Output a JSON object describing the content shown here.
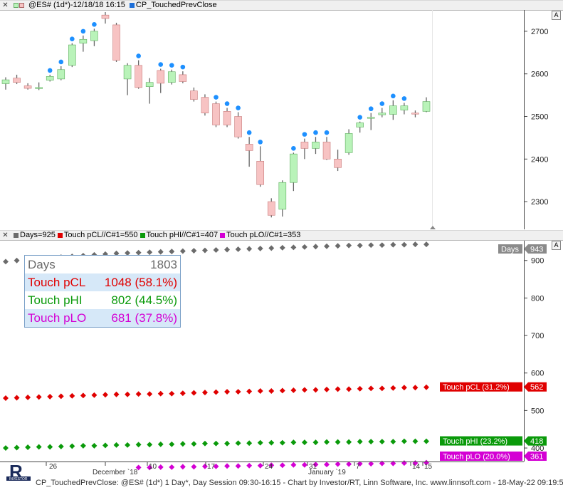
{
  "top_panel": {
    "title": "@ES# (1d*)-12/18/18 16:15",
    "indicator": "CP_TouchedPrevClose",
    "a_button": "A",
    "y_ticks": [
      "2700",
      "2600",
      "2500",
      "2400",
      "2300"
    ]
  },
  "bottom_panel": {
    "legend": [
      "Days=925",
      "Touch pCL//C#1=550",
      "Touch pHI//C#1=407",
      "Touch pLO//C#1=353"
    ],
    "a_button": "A",
    "y_ticks": [
      "900",
      "800",
      "700",
      "600",
      "500",
      "400"
    ],
    "tags": {
      "days": "Days",
      "days_val": "943",
      "pcl_label": "Touch pCL (31.2%)",
      "pcl_val": "562",
      "phi_label": "Touch pHI (23.2%)",
      "phi_val": "418",
      "plo_label": "Touch pLO (20.0%)",
      "plo_val": "361"
    },
    "table": {
      "days_label": "Days",
      "days_val": "1803",
      "pcl_label": "Touch pCL",
      "pcl_val": "1048 (58.1%)",
      "phi_label": "Touch pHI",
      "phi_val": "802 (44.5%)",
      "plo_label": "Touch pLO",
      "plo_val": "681 (37.8%)"
    }
  },
  "x_axis": {
    "labels": [
      "26",
      "December `18",
      "10",
      "17",
      "24",
      "31",
      "January `19",
      "7",
      "14",
      "15"
    ]
  },
  "footer": "CP_TouchedPrevClose: @ES# (1d*) 1 Day*, Day Session 09:30-16:15 - Chart by Investor/RT, Linn Software, Inc. www.linnsoft.com - 18-May-22 09:19:5",
  "colors": {
    "up": "#b9f3b9",
    "down": "#f7c3c3",
    "dot": "#1e90ff",
    "days": "#6b6b6b",
    "pcl": "#e00000",
    "phi": "#0a9a0a",
    "plo": "#d400d4"
  },
  "chart_data": {
    "type": "candlestick",
    "ylim": [
      2235,
      2750
    ],
    "candles": [
      {
        "o": 2577,
        "h": 2592,
        "l": 2563,
        "c": 2586,
        "dot": false
      },
      {
        "o": 2590,
        "h": 2598,
        "l": 2576,
        "c": 2580,
        "dot": false
      },
      {
        "o": 2572,
        "h": 2578,
        "l": 2563,
        "c": 2566,
        "dot": false
      },
      {
        "o": 2566,
        "h": 2580,
        "l": 2562,
        "c": 2568,
        "dot": false
      },
      {
        "o": 2585,
        "h": 2598,
        "l": 2582,
        "c": 2594,
        "dot": true
      },
      {
        "o": 2588,
        "h": 2618,
        "l": 2585,
        "c": 2610,
        "dot": true
      },
      {
        "o": 2620,
        "h": 2672,
        "l": 2616,
        "c": 2668,
        "dot": true
      },
      {
        "o": 2672,
        "h": 2690,
        "l": 2652,
        "c": 2681,
        "dot": true
      },
      {
        "o": 2678,
        "h": 2706,
        "l": 2665,
        "c": 2700,
        "dot": true
      },
      {
        "o": 2738,
        "h": 2745,
        "l": 2718,
        "c": 2730,
        "dot": false
      },
      {
        "o": 2715,
        "h": 2720,
        "l": 2628,
        "c": 2632,
        "dot": false
      },
      {
        "o": 2588,
        "h": 2625,
        "l": 2550,
        "c": 2620,
        "dot": false
      },
      {
        "o": 2620,
        "h": 2632,
        "l": 2565,
        "c": 2568,
        "dot": true
      },
      {
        "o": 2570,
        "h": 2590,
        "l": 2530,
        "c": 2580,
        "dot": false
      },
      {
        "o": 2608,
        "h": 2612,
        "l": 2555,
        "c": 2578,
        "dot": true
      },
      {
        "o": 2580,
        "h": 2610,
        "l": 2575,
        "c": 2605,
        "dot": true
      },
      {
        "o": 2598,
        "h": 2606,
        "l": 2578,
        "c": 2582,
        "dot": true
      },
      {
        "o": 2560,
        "h": 2568,
        "l": 2535,
        "c": 2540,
        "dot": false
      },
      {
        "o": 2545,
        "h": 2552,
        "l": 2502,
        "c": 2508,
        "dot": false
      },
      {
        "o": 2530,
        "h": 2535,
        "l": 2475,
        "c": 2480,
        "dot": true
      },
      {
        "o": 2512,
        "h": 2520,
        "l": 2475,
        "c": 2480,
        "dot": true
      },
      {
        "o": 2500,
        "h": 2510,
        "l": 2448,
        "c": 2452,
        "dot": true
      },
      {
        "o": 2435,
        "h": 2452,
        "l": 2382,
        "c": 2420,
        "dot": true
      },
      {
        "o": 2395,
        "h": 2430,
        "l": 2335,
        "c": 2340,
        "dot": true
      },
      {
        "o": 2300,
        "h": 2308,
        "l": 2263,
        "c": 2268,
        "dot": false
      },
      {
        "o": 2282,
        "h": 2350,
        "l": 2265,
        "c": 2345,
        "dot": false
      },
      {
        "o": 2345,
        "h": 2415,
        "l": 2325,
        "c": 2412,
        "dot": true
      },
      {
        "o": 2440,
        "h": 2448,
        "l": 2400,
        "c": 2425,
        "dot": true
      },
      {
        "o": 2425,
        "h": 2452,
        "l": 2412,
        "c": 2440,
        "dot": true
      },
      {
        "o": 2440,
        "h": 2452,
        "l": 2398,
        "c": 2400,
        "dot": true
      },
      {
        "o": 2400,
        "h": 2422,
        "l": 2372,
        "c": 2380,
        "dot": false
      },
      {
        "o": 2415,
        "h": 2470,
        "l": 2410,
        "c": 2460,
        "dot": false
      },
      {
        "o": 2475,
        "h": 2488,
        "l": 2462,
        "c": 2485,
        "dot": true
      },
      {
        "o": 2496,
        "h": 2508,
        "l": 2468,
        "c": 2498,
        "dot": true
      },
      {
        "o": 2504,
        "h": 2520,
        "l": 2498,
        "c": 2508,
        "dot": true
      },
      {
        "o": 2505,
        "h": 2538,
        "l": 2492,
        "c": 2525,
        "dot": true
      },
      {
        "o": 2515,
        "h": 2532,
        "l": 2505,
        "c": 2525,
        "dot": true
      },
      {
        "o": 2508,
        "h": 2514,
        "l": 2498,
        "c": 2506,
        "dot": false
      },
      {
        "o": 2512,
        "h": 2545,
        "l": 2510,
        "c": 2535,
        "dot": false
      }
    ],
    "days_series": [
      897,
      900,
      903,
      905,
      907,
      909,
      911,
      913,
      915,
      917,
      919,
      920,
      921,
      922,
      923,
      924,
      925,
      926,
      927,
      928,
      929,
      930,
      931,
      932,
      933,
      934,
      935,
      936,
      937,
      938,
      939,
      940,
      940,
      941,
      941,
      942,
      942,
      943,
      943
    ],
    "pcl_series": [
      533,
      534,
      535,
      536,
      537,
      538,
      539,
      540,
      541,
      542,
      543,
      543,
      544,
      544,
      545,
      545,
      546,
      547,
      548,
      549,
      550,
      550,
      551,
      552,
      552,
      553,
      554,
      555,
      555,
      556,
      557,
      557,
      558,
      559,
      559,
      560,
      561,
      561,
      562
    ],
    "phi_series": [
      400,
      401,
      402,
      403,
      403,
      404,
      405,
      406,
      406,
      407,
      408,
      408,
      409,
      409,
      410,
      410,
      411,
      411,
      412,
      412,
      412,
      413,
      413,
      414,
      414,
      414,
      415,
      415,
      415,
      416,
      416,
      416,
      417,
      417,
      417,
      417,
      418,
      418,
      418
    ],
    "plo_series": [
      null,
      null,
      null,
      null,
      null,
      null,
      null,
      null,
      null,
      null,
      null,
      null,
      348,
      348,
      349,
      349,
      350,
      350,
      351,
      351,
      352,
      352,
      353,
      353,
      354,
      354,
      355,
      355,
      356,
      356,
      357,
      357,
      358,
      358,
      359,
      359,
      360,
      360,
      361
    ],
    "bottom_ylim": [
      364,
      947
    ]
  }
}
